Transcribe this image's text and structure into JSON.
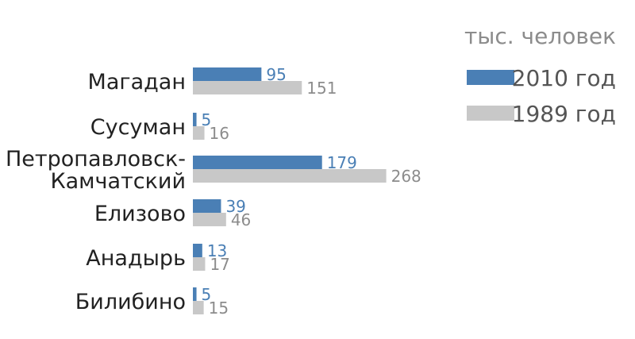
{
  "chart_data": {
    "type": "bar",
    "orientation": "horizontal",
    "unit": "тыс. человек",
    "categories": [
      [
        "Магадан"
      ],
      [
        "Сусуман"
      ],
      [
        "Петропавловск-",
        "Камчатский"
      ],
      [
        "Елизово"
      ],
      [
        "Анадырь"
      ],
      [
        "Билибино"
      ]
    ],
    "series": [
      {
        "name": "2010 год",
        "values": [
          95,
          5,
          179,
          39,
          13,
          5
        ],
        "color": "#4a7fb5"
      },
      {
        "name": "1989 год",
        "values": [
          151,
          16,
          268,
          46,
          17,
          15
        ],
        "color": "#c8c8c8"
      }
    ],
    "value_label_colors": [
      "#4a7fb5",
      "#8c8c8c"
    ],
    "legend_placement": "top-right",
    "grid": false
  }
}
